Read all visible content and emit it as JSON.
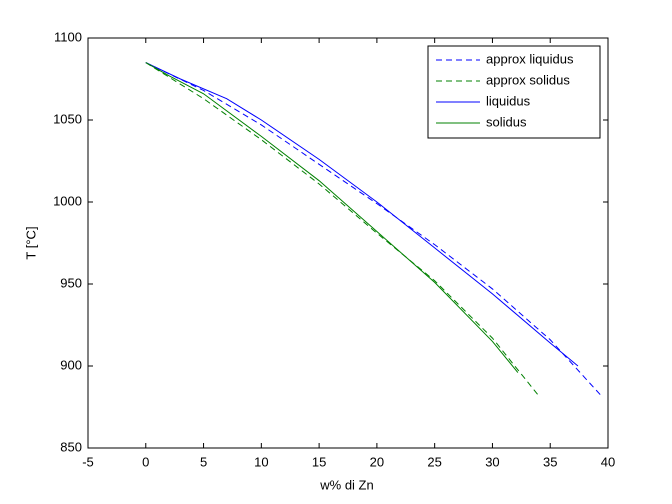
{
  "chart_data": {
    "type": "line",
    "xlabel": "w% di Zn",
    "ylabel": "T [°C]",
    "xlim": [
      -5,
      40
    ],
    "xticks": [
      -5,
      0,
      5,
      10,
      15,
      20,
      25,
      30,
      35,
      40
    ],
    "ylim": [
      850,
      1100
    ],
    "yticks": [
      850,
      900,
      950,
      1000,
      1050,
      1100
    ],
    "legend": "upper right",
    "series": [
      {
        "name": "approx liquidus",
        "color": "#0000ff",
        "dashed": true,
        "x": [
          0,
          5,
          10,
          15,
          20,
          25,
          30,
          35,
          39.4
        ],
        "values": [
          1085,
          1068,
          1047,
          1023,
          999,
          974,
          947,
          916,
          882
        ]
      },
      {
        "name": "approx solidus",
        "color": "#008000",
        "dashed": true,
        "x": [
          0,
          5,
          10,
          15,
          20,
          25,
          30,
          34.1
        ],
        "values": [
          1085,
          1063,
          1038,
          1011,
          981,
          952,
          917,
          881
        ]
      },
      {
        "name": "liquidus",
        "color": "#0000ff",
        "dashed": false,
        "x": [
          0,
          3,
          7,
          10,
          15,
          20,
          25,
          30,
          35,
          37.4
        ],
        "values": [
          1085,
          1075,
          1063,
          1050,
          1026,
          1000,
          972,
          944,
          914,
          900
        ]
      },
      {
        "name": "solidus",
        "color": "#008000",
        "dashed": false,
        "x": [
          0,
          2,
          5,
          10,
          15,
          20,
          25,
          30,
          32.2
        ],
        "values": [
          1085,
          1077,
          1066,
          1040,
          1013,
          982,
          951,
          915,
          896
        ]
      }
    ]
  }
}
